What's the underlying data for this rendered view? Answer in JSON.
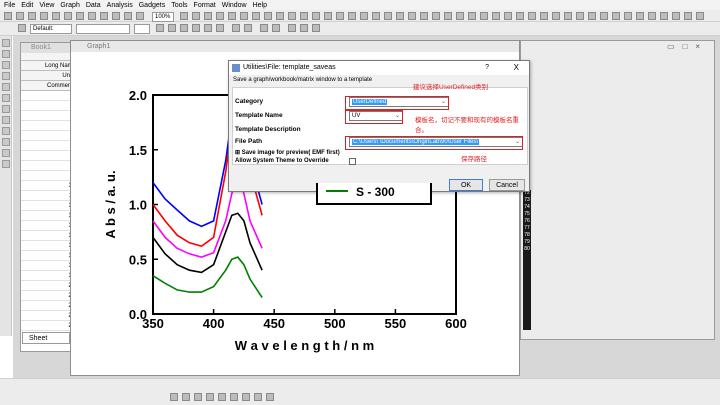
{
  "menu": [
    "File",
    "Edit",
    "View",
    "Graph",
    "Data",
    "Analysis",
    "Gadgets",
    "Tools",
    "Format",
    "Window",
    "Help"
  ],
  "toolbar": {
    "zoom": "100%",
    "style": "Default:"
  },
  "book": {
    "title": "Book1",
    "headers": [
      "Long Name",
      "Units",
      "Comments"
    ],
    "rows": [
      "1",
      "2",
      "3",
      "4",
      "5",
      "6",
      "7",
      "8",
      "9",
      "10",
      "11",
      "12",
      "13",
      "14",
      "15",
      "16",
      "17",
      "18",
      "19",
      "20",
      "21",
      "22",
      "23",
      "24"
    ],
    "sheet": "Sheet"
  },
  "graph": {
    "title": "Graph1"
  },
  "right_rows": [
    "72",
    "73",
    "74",
    "75",
    "76",
    "77",
    "78",
    "79",
    "80"
  ],
  "chart_data": {
    "type": "line",
    "xlabel": "W a v e l e n g t h / n m",
    "ylabel": "A b s / a. u.",
    "xlim": [
      350,
      600
    ],
    "ylim": [
      0,
      2.0
    ],
    "x_ticks": [
      "350",
      "400",
      "450",
      "500",
      "550",
      "600"
    ],
    "y_ticks": [
      "0.0",
      "0.5",
      "1.0",
      "1.5",
      "2.0"
    ],
    "legend_visible": "S - 300",
    "x": [
      350,
      360,
      370,
      380,
      390,
      400,
      410,
      415,
      420,
      425,
      430,
      440
    ],
    "series": [
      {
        "color": "#0000ff",
        "values": [
          1.2,
          1.05,
          0.95,
          0.85,
          0.8,
          0.85,
          1.4,
          1.8,
          2.0,
          1.8,
          1.4,
          1.0
        ]
      },
      {
        "color": "#ff0000",
        "values": [
          1.0,
          0.85,
          0.72,
          0.65,
          0.62,
          0.7,
          1.3,
          1.7,
          2.0,
          1.7,
          1.3,
          0.9
        ]
      },
      {
        "color": "#ff00ff",
        "values": [
          0.85,
          0.7,
          0.6,
          0.55,
          0.52,
          0.56,
          0.85,
          1.1,
          1.25,
          1.1,
          0.85,
          0.6
        ]
      },
      {
        "color": "#000000",
        "values": [
          0.7,
          0.55,
          0.45,
          0.4,
          0.38,
          0.45,
          0.75,
          0.9,
          0.92,
          0.85,
          0.65,
          0.4
        ]
      },
      {
        "color": "#008000",
        "values": [
          0.35,
          0.28,
          0.22,
          0.2,
          0.2,
          0.25,
          0.4,
          0.5,
          0.52,
          0.45,
          0.32,
          0.15
        ]
      }
    ]
  },
  "dialog": {
    "title": "Utilities\\File: template_saveas",
    "desc": "Save a graph/workbook/matrix window to a template",
    "category_label": "Category",
    "category_value": "UserDefined",
    "template_name_label": "Template Name",
    "template_name_value": "UV",
    "template_desc_label": "Template Description",
    "file_path_label": "File Path",
    "file_path_value": "C:\\Users\\            \\Documents\\OriginLab\\90\\User Files\\",
    "save_image_label": "Save image for preview( EMF first)",
    "allow_theme_label": "Allow System Theme to Override",
    "ok": "OK",
    "cancel": "Cancel",
    "help": "?",
    "close": "X"
  },
  "notes": {
    "category": "建议选择UserDefined类别",
    "template_name": "模板名，切记不要和现有的模板名重合。",
    "file_path": "保存路径"
  }
}
